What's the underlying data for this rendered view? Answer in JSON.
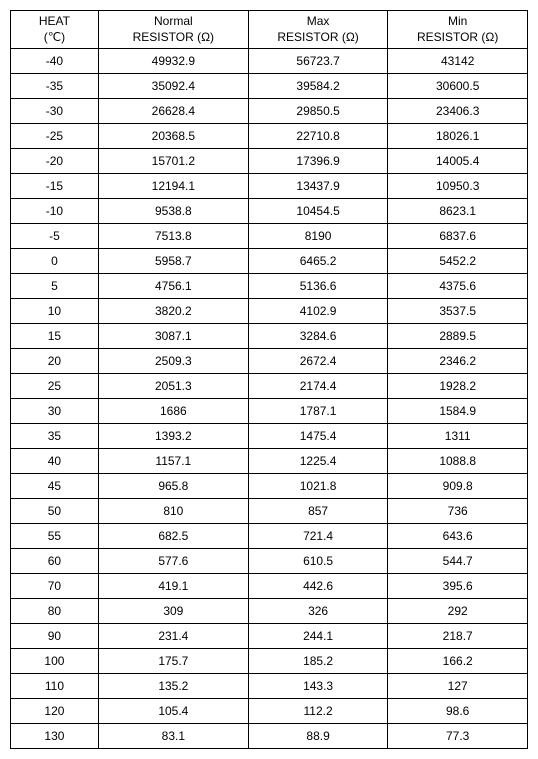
{
  "table": {
    "headers": {
      "col0_line1": "HEAT",
      "col0_line2": "(℃)",
      "col1_line1": "Normal",
      "col1_line2": "RESISTOR (Ω)",
      "col2_line1": "Max",
      "col2_line2": "RESISTOR (Ω)",
      "col3_line1": "Min",
      "col3_line2": "RESISTOR (Ω)"
    },
    "rows": [
      {
        "heat": "-40",
        "normal": "49932.9",
        "max": "56723.7",
        "min": "43142"
      },
      {
        "heat": "-35",
        "normal": "35092.4",
        "max": "39584.2",
        "min": "30600.5"
      },
      {
        "heat": "-30",
        "normal": "26628.4",
        "max": "29850.5",
        "min": "23406.3"
      },
      {
        "heat": "-25",
        "normal": "20368.5",
        "max": "22710.8",
        "min": "18026.1"
      },
      {
        "heat": "-20",
        "normal": "15701.2",
        "max": "17396.9",
        "min": "14005.4"
      },
      {
        "heat": "-15",
        "normal": "12194.1",
        "max": "13437.9",
        "min": "10950.3"
      },
      {
        "heat": "-10",
        "normal": "9538.8",
        "max": "10454.5",
        "min": "8623.1"
      },
      {
        "heat": "-5",
        "normal": "7513.8",
        "max": "8190",
        "min": "6837.6"
      },
      {
        "heat": "0",
        "normal": "5958.7",
        "max": "6465.2",
        "min": "5452.2"
      },
      {
        "heat": "5",
        "normal": "4756.1",
        "max": "5136.6",
        "min": "4375.6"
      },
      {
        "heat": "10",
        "normal": "3820.2",
        "max": "4102.9",
        "min": "3537.5"
      },
      {
        "heat": "15",
        "normal": "3087.1",
        "max": "3284.6",
        "min": "2889.5"
      },
      {
        "heat": "20",
        "normal": "2509.3",
        "max": "2672.4",
        "min": "2346.2"
      },
      {
        "heat": "25",
        "normal": "2051.3",
        "max": "2174.4",
        "min": "1928.2"
      },
      {
        "heat": "30",
        "normal": "1686",
        "max": "1787.1",
        "min": "1584.9"
      },
      {
        "heat": "35",
        "normal": "1393.2",
        "max": "1475.4",
        "min": "1311"
      },
      {
        "heat": "40",
        "normal": "1157.1",
        "max": "1225.4",
        "min": "1088.8"
      },
      {
        "heat": "45",
        "normal": "965.8",
        "max": "1021.8",
        "min": "909.8"
      },
      {
        "heat": "50",
        "normal": "810",
        "max": "857",
        "min": "736"
      },
      {
        "heat": "55",
        "normal": "682.5",
        "max": "721.4",
        "min": "643.6"
      },
      {
        "heat": "60",
        "normal": "577.6",
        "max": "610.5",
        "min": "544.7"
      },
      {
        "heat": "70",
        "normal": "419.1",
        "max": "442.6",
        "min": "395.6"
      },
      {
        "heat": "80",
        "normal": "309",
        "max": "326",
        "min": "292"
      },
      {
        "heat": "90",
        "normal": "231.4",
        "max": "244.1",
        "min": "218.7"
      },
      {
        "heat": "100",
        "normal": "175.7",
        "max": "185.2",
        "min": "166.2"
      },
      {
        "heat": "110",
        "normal": "135.2",
        "max": "143.3",
        "min": "127"
      },
      {
        "heat": "120",
        "normal": "105.4",
        "max": "112.2",
        "min": "98.6"
      },
      {
        "heat": "130",
        "normal": "83.1",
        "max": "88.9",
        "min": "77.3"
      }
    ],
    "style": {
      "border_color": "#000000",
      "background_color": "#ffffff",
      "font_size": 12,
      "text_align": "center"
    }
  }
}
